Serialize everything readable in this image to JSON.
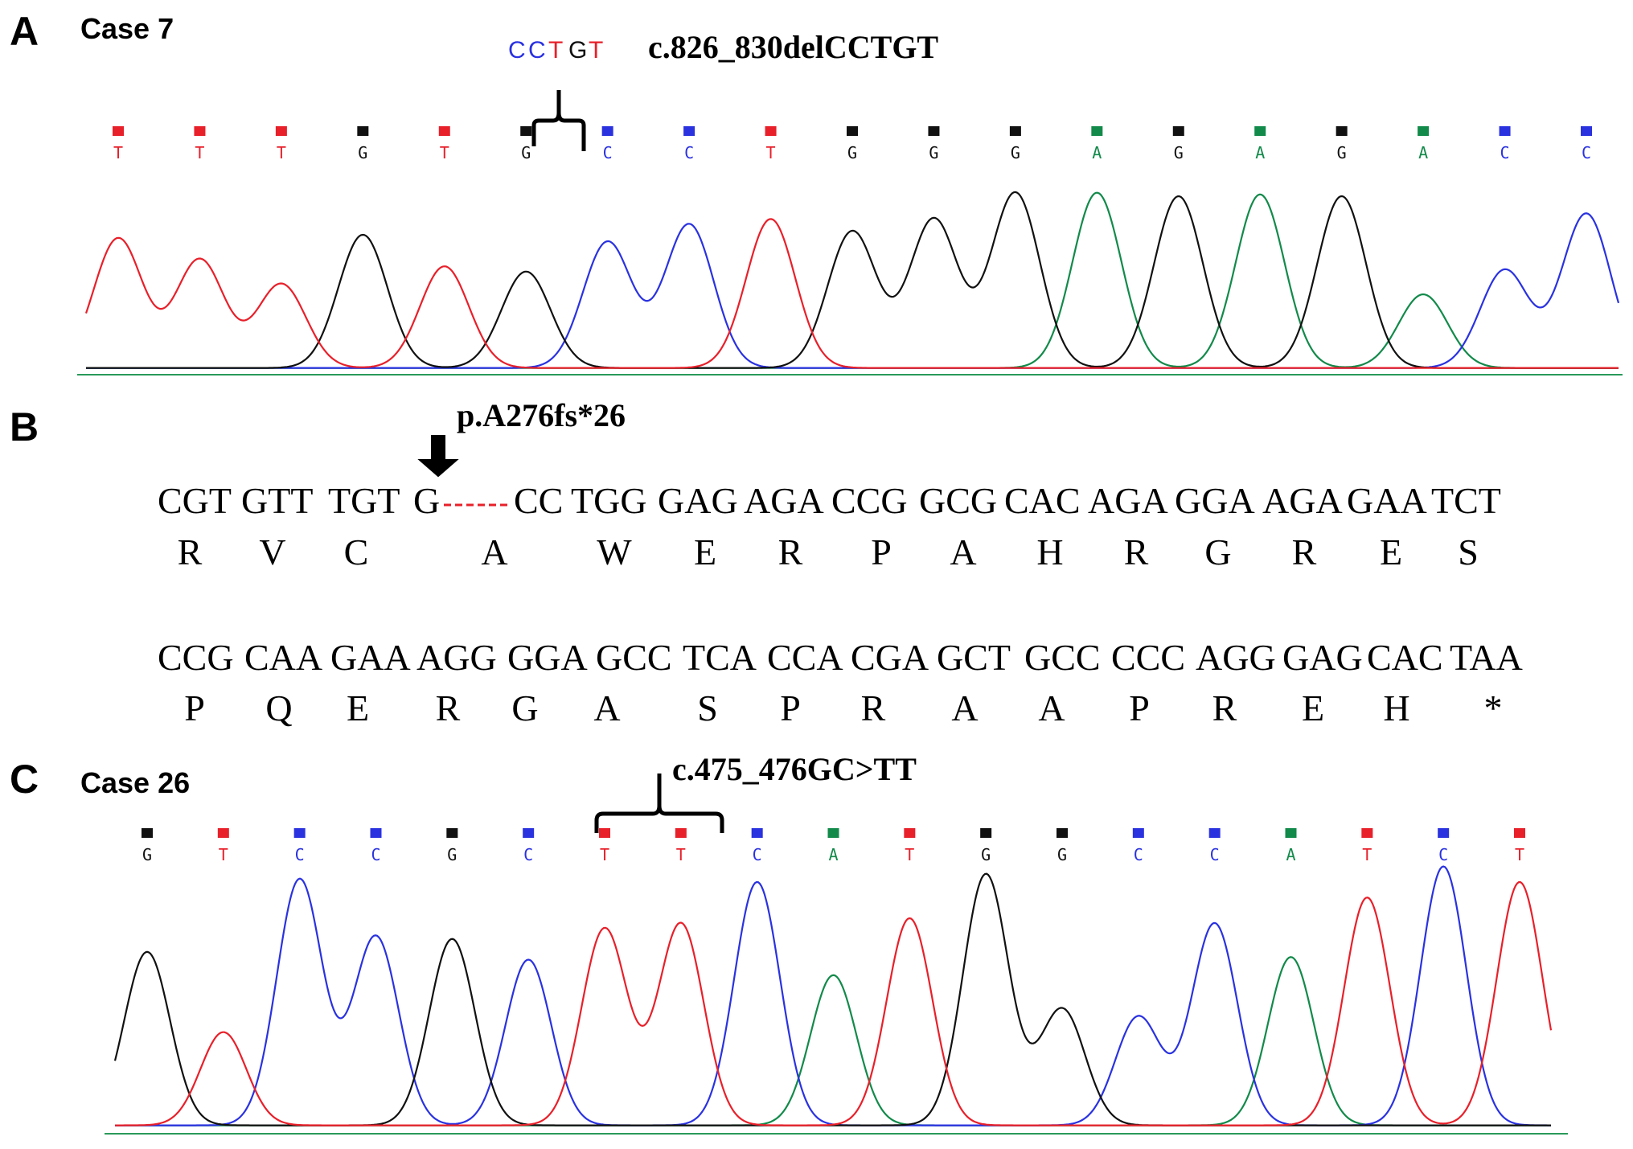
{
  "colors": {
    "T": "#e8202a",
    "G": "#111111",
    "C": "#2a32e0",
    "A": "#128a4a"
  },
  "panels": [
    {
      "letter": "A",
      "case_label": "Case 7",
      "deleted_sequence": [
        "C",
        "C",
        "T",
        "G",
        "T"
      ],
      "mutation": "c.826_830delCCTGT",
      "bases": [
        "T",
        "T",
        "T",
        "G",
        "T",
        "G",
        "C",
        "C",
        "T",
        "G",
        "G",
        "G",
        "A",
        "G",
        "A",
        "G",
        "A",
        "C",
        "C"
      ],
      "peak_heights": [
        0.74,
        0.62,
        0.48,
        0.76,
        0.58,
        0.55,
        0.72,
        0.82,
        0.85,
        0.78,
        0.85,
        1.0,
        1.0,
        0.98,
        0.99,
        0.98,
        0.42,
        0.56,
        0.88
      ]
    },
    {
      "letter": "B",
      "frameshift": "p.A276fs*26",
      "row1": {
        "codons": [
          "CGT",
          "GTT",
          "TGT",
          "G",
          "CC",
          "TGG",
          "GAG",
          "AGA",
          "CCG",
          "GCG",
          "CAC",
          "AGA",
          "GGA",
          "AGA",
          "GAA",
          "TCT"
        ],
        "amino_acids": [
          "R",
          "V",
          "C",
          "A",
          "W",
          "E",
          "R",
          "P",
          "A",
          "H",
          "R",
          "G",
          "R",
          "E",
          "S"
        ]
      },
      "row2": {
        "codons": [
          "CCG",
          "CAA",
          "GAA",
          "AGG",
          "GGA",
          "GCC",
          "TCA",
          "CCA",
          "CGA",
          "GCT",
          "GCC",
          "CCC",
          "AGG",
          "GAG",
          "CAC",
          "TAA"
        ],
        "amino_acids": [
          "P",
          "Q",
          "E",
          "R",
          "G",
          "A",
          "S",
          "P",
          "R",
          "A",
          "A",
          "P",
          "R",
          "E",
          "H",
          "*"
        ]
      }
    },
    {
      "letter": "C",
      "case_label": "Case 26",
      "mutation": "c.475_476GC>TT",
      "bases": [
        "G",
        "T",
        "C",
        "C",
        "G",
        "C",
        "T",
        "T",
        "C",
        "A",
        "T",
        "G",
        "G",
        "C",
        "C",
        "A",
        "T",
        "C",
        "T"
      ],
      "peak_heights": [
        0.67,
        0.36,
        0.95,
        0.73,
        0.72,
        0.64,
        0.76,
        0.78,
        0.94,
        0.58,
        0.8,
        0.97,
        0.45,
        0.42,
        0.78,
        0.65,
        0.88,
        1.0,
        0.94
      ]
    }
  ]
}
